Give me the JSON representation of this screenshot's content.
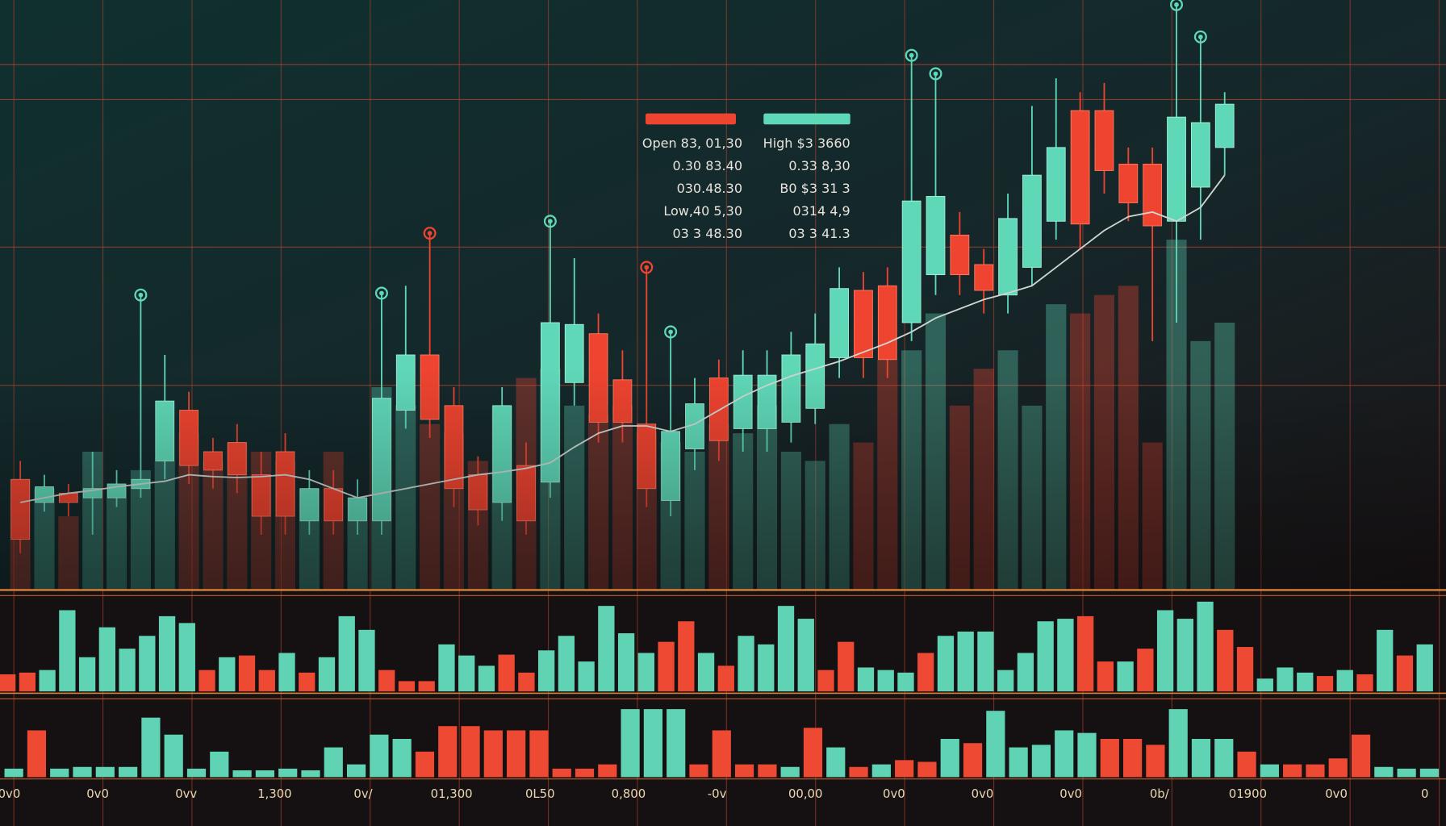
{
  "chart_data": [
    {
      "type": "candlestick",
      "up_color": "#5fd8b8",
      "down_color": "#ee4430",
      "line_color": "#cfd6d2",
      "ylim": [
        0,
        640
      ],
      "grid": true,
      "open": [
        120,
        95,
        105,
        100,
        100,
        110,
        140,
        195,
        150,
        160,
        125,
        150,
        75,
        110,
        75,
        75,
        195,
        255,
        200,
        125,
        95,
        135,
        117,
        225,
        278,
        228,
        180,
        97,
        153,
        230,
        175,
        175,
        182,
        197,
        252,
        325,
        330,
        290,
        342,
        385,
        353,
        320,
        350,
        400,
        520,
        520,
        462,
        462,
        400,
        437,
        480
      ],
      "high": [
        140,
        125,
        115,
        150,
        130,
        320,
        255,
        215,
        165,
        180,
        150,
        170,
        130,
        130,
        120,
        322,
        330,
        387,
        220,
        145,
        220,
        160,
        400,
        360,
        300,
        260,
        350,
        280,
        230,
        250,
        260,
        260,
        280,
        300,
        350,
        345,
        350,
        580,
        560,
        410,
        370,
        430,
        525,
        555,
        540,
        550,
        480,
        480,
        635,
        600,
        540
      ],
      "low": [
        40,
        85,
        80,
        60,
        90,
        100,
        120,
        115,
        110,
        105,
        60,
        60,
        60,
        60,
        60,
        60,
        175,
        165,
        90,
        70,
        75,
        60,
        100,
        200,
        160,
        160,
        90,
        80,
        130,
        140,
        150,
        150,
        160,
        180,
        230,
        230,
        230,
        270,
        320,
        320,
        300,
        300,
        330,
        380,
        370,
        430,
        400,
        270,
        290,
        380,
        450
      ],
      "close": [
        55,
        112,
        95,
        110,
        115,
        120,
        205,
        135,
        130,
        125,
        80,
        80,
        110,
        75,
        100,
        208,
        255,
        185,
        110,
        87,
        200,
        75,
        290,
        288,
        182,
        182,
        110,
        172,
        202,
        162,
        233,
        233,
        255,
        267,
        327,
        252,
        250,
        422,
        427,
        342,
        325,
        403,
        450,
        480,
        397,
        455,
        420,
        395,
        513,
        507,
        527
      ],
      "ma": [
        95,
        100,
        105,
        108,
        112,
        115,
        118,
        125,
        123,
        122,
        123,
        125,
        120,
        110,
        100,
        105,
        110,
        115,
        120,
        125,
        128,
        132,
        138,
        155,
        170,
        178,
        178,
        172,
        180,
        195,
        210,
        222,
        232,
        240,
        248,
        258,
        268,
        280,
        295,
        305,
        315,
        322,
        330,
        350,
        370,
        390,
        405,
        410,
        400,
        415,
        450
      ],
      "bars": [
        120,
        110,
        80,
        150,
        100,
        130,
        140,
        170,
        140,
        160,
        150,
        140,
        110,
        150,
        100,
        220,
        200,
        180,
        170,
        140,
        200,
        230,
        240,
        200,
        190,
        200,
        170,
        160,
        150,
        180,
        170,
        200,
        150,
        140,
        180,
        160,
        250,
        260,
        300,
        200,
        240,
        260,
        200,
        310,
        300,
        320,
        330,
        160,
        380,
        270,
        290
      ],
      "info_left": [
        "Open 83, 01,30",
        "0.30 83.40",
        "030.48.30",
        "Low,40 5,30",
        "03 3 48.30"
      ],
      "info_right": [
        "High $3 3660",
        "0.33 8,30",
        "B0 $3 31 3",
        "0314 4,9",
        "03 3 41.3"
      ]
    },
    {
      "type": "bar",
      "ylim": [
        0,
        110
      ],
      "values": [
        20,
        22,
        25,
        95,
        40,
        75,
        50,
        65,
        88,
        80,
        25,
        40,
        42,
        25,
        45,
        22,
        40,
        88,
        72,
        25,
        12,
        12,
        55,
        42,
        30,
        43,
        22,
        48,
        65,
        35,
        100,
        68,
        45,
        58,
        82,
        45,
        30,
        65,
        55,
        100,
        85,
        25,
        58,
        28,
        25,
        22,
        45,
        65,
        70,
        70,
        25,
        45,
        82,
        85,
        88,
        35,
        35,
        50,
        95,
        85,
        105,
        72,
        52,
        15,
        28,
        22,
        18,
        25,
        20,
        72,
        42,
        55
      ],
      "colors": [
        "#ee4a33",
        "#ee4a33",
        "#5fd3b3",
        "#5fd3b3",
        "#5fd3b3",
        "#5fd3b3",
        "#5fd3b3",
        "#5fd3b3",
        "#5fd3b3",
        "#5fd3b3",
        "#ee4a33",
        "#5fd3b3",
        "#ee4a33",
        "#ee4a33",
        "#5fd3b3",
        "#ee4a33",
        "#5fd3b3",
        "#5fd3b3",
        "#5fd3b3",
        "#ee4a33",
        "#ee4a33",
        "#ee4a33",
        "#5fd3b3",
        "#5fd3b3",
        "#5fd3b3",
        "#ee4a33",
        "#ee4a33",
        "#5fd3b3",
        "#5fd3b3",
        "#5fd3b3",
        "#5fd3b3",
        "#5fd3b3",
        "#5fd3b3",
        "#ee4a33",
        "#ee4a33",
        "#5fd3b3",
        "#ee4a33",
        "#5fd3b3",
        "#5fd3b3",
        "#5fd3b3",
        "#5fd3b3",
        "#ee4a33",
        "#ee4a33",
        "#5fd3b3",
        "#5fd3b3",
        "#5fd3b3",
        "#ee4a33",
        "#5fd3b3",
        "#5fd3b3",
        "#5fd3b3",
        "#5fd3b3",
        "#5fd3b3",
        "#5fd3b3",
        "#5fd3b3",
        "#ee4a33",
        "#ee4a33",
        "#5fd3b3",
        "#ee4a33",
        "#5fd3b3",
        "#5fd3b3",
        "#5fd3b3",
        "#ee4a33",
        "#ee4a33",
        "#5fd3b3",
        "#5fd3b3",
        "#5fd3b3",
        "#ee4a33",
        "#5fd3b3",
        "#ee4a33",
        "#5fd3b3",
        "#ee4a33",
        "#5fd3b3"
      ]
    },
    {
      "type": "bar",
      "ylim": [
        0,
        90
      ],
      "values": [
        10,
        55,
        10,
        12,
        12,
        12,
        70,
        50,
        10,
        30,
        8,
        8,
        10,
        8,
        35,
        15,
        50,
        45,
        30,
        60,
        60,
        55,
        55,
        55,
        10,
        10,
        15,
        80,
        80,
        80,
        15,
        55,
        15,
        15,
        12,
        58,
        35,
        12,
        15,
        20,
        18,
        45,
        40,
        78,
        35,
        38,
        55,
        52,
        45,
        45,
        38,
        80,
        45,
        45,
        30,
        15,
        15,
        15,
        22,
        50,
        12,
        10,
        10
      ],
      "colors": [
        "#5fd3b3",
        "#ee4a33",
        "#5fd3b3",
        "#5fd3b3",
        "#5fd3b3",
        "#5fd3b3",
        "#5fd3b3",
        "#5fd3b3",
        "#5fd3b3",
        "#5fd3b3",
        "#5fd3b3",
        "#5fd3b3",
        "#5fd3b3",
        "#5fd3b3",
        "#5fd3b3",
        "#5fd3b3",
        "#5fd3b3",
        "#5fd3b3",
        "#ee4a33",
        "#ee4a33",
        "#ee4a33",
        "#ee4a33",
        "#ee4a33",
        "#ee4a33",
        "#ee4a33",
        "#ee4a33",
        "#ee4a33",
        "#5fd3b3",
        "#5fd3b3",
        "#5fd3b3",
        "#ee4a33",
        "#ee4a33",
        "#ee4a33",
        "#ee4a33",
        "#5fd3b3",
        "#ee4a33",
        "#5fd3b3",
        "#ee4a33",
        "#5fd3b3",
        "#ee4a33",
        "#ee4a33",
        "#5fd3b3",
        "#ee4a33",
        "#5fd3b3",
        "#5fd3b3",
        "#5fd3b3",
        "#5fd3b3",
        "#5fd3b3",
        "#ee4a33",
        "#ee4a33",
        "#ee4a33",
        "#5fd3b3",
        "#5fd3b3",
        "#5fd3b3",
        "#ee4a33",
        "#5fd3b3",
        "#ee4a33",
        "#ee4a33",
        "#ee4a33",
        "#ee4a33",
        "#5fd3b3",
        "#5fd3b3",
        "#5fd3b3"
      ],
      "x_labels": [
        "0v0",
        "0v0",
        "0vv",
        "1,300",
        "0v/",
        "01,300",
        "0L50",
        "0,800",
        "-0v",
        "00,00",
        "0v0",
        "0v0",
        "0v0",
        "0b/",
        "01900",
        "0v0",
        "0"
      ]
    }
  ]
}
